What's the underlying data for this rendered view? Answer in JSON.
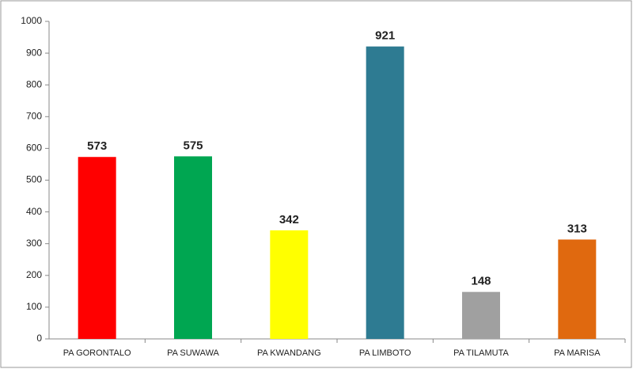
{
  "chart_data": {
    "type": "bar",
    "categories": [
      "PA GORONTALO",
      "PA SUWAWA",
      "PA KWANDANG",
      "PA LIMBOTO",
      "PA TILAMUTA",
      "PA MARISA"
    ],
    "values": [
      573,
      575,
      342,
      921,
      148,
      313
    ],
    "colors": [
      "#ff0000",
      "#00a651",
      "#ffff00",
      "#2e7b92",
      "#a0a0a0",
      "#e0690f"
    ],
    "ylim": [
      0,
      1000
    ],
    "yticks": [
      0,
      100,
      200,
      300,
      400,
      500,
      600,
      700,
      800,
      900,
      1000
    ],
    "grid": false
  }
}
